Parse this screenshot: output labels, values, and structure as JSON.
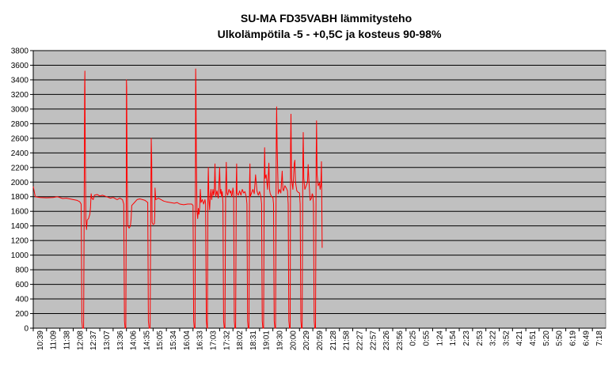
{
  "chart_data": {
    "type": "line",
    "title": "SU-MA FD35VABH lämmitysteho",
    "subtitle": "Ulkolämpötila  -5 - +0,5C ja kosteus 90-98%",
    "xlabel": "",
    "ylabel": "",
    "ylim": [
      0,
      3800
    ],
    "yticks": [
      0,
      200,
      400,
      600,
      800,
      1000,
      1200,
      1400,
      1600,
      1800,
      2000,
      2200,
      2400,
      2600,
      2800,
      3000,
      3200,
      3400,
      3600,
      3800
    ],
    "xticks": [
      "10:39",
      "11:09",
      "11:38",
      "12:08",
      "12:37",
      "13:07",
      "13:36",
      "14:06",
      "14:35",
      "15:05",
      "15:34",
      "16:04",
      "16:33",
      "17:03",
      "17:32",
      "18:02",
      "18:31",
      "19:01",
      "19:30",
      "20:00",
      "20:29",
      "20:59",
      "21:28",
      "21:58",
      "22:27",
      "22:57",
      "23:26",
      "23:56",
      "0:25",
      "0:55",
      "1:24",
      "1:54",
      "2:23",
      "2:53",
      "3:22",
      "3:52",
      "4:21",
      "4:51",
      "5:20",
      "5:50",
      "6:19",
      "6:49",
      "7:18"
    ],
    "grid": true,
    "plot_background": "#c0c0c0",
    "colors": {
      "line": "#ff0000",
      "grid": "#000000",
      "plot_bg": "#c0c0c0"
    },
    "series": [
      {
        "values": [
          [
            0,
            1940
          ],
          [
            0.15,
            1800
          ],
          [
            0.5,
            1790
          ],
          [
            1,
            1785
          ],
          [
            1.5,
            1790
          ],
          [
            1.8,
            1800
          ],
          [
            2.2,
            1775
          ],
          [
            2.5,
            1780
          ],
          [
            3,
            1760
          ],
          [
            3.3,
            1750
          ],
          [
            3.5,
            1730
          ],
          [
            3.6,
            1700
          ],
          [
            3.65,
            100
          ],
          [
            3.7,
            0
          ],
          [
            3.78,
            0
          ],
          [
            3.82,
            1380
          ],
          [
            3.86,
            3300
          ],
          [
            3.88,
            3520
          ],
          [
            3.9,
            2600
          ],
          [
            3.95,
            1500
          ],
          [
            4.0,
            1350
          ],
          [
            4.05,
            1480
          ],
          [
            4.15,
            1500
          ],
          [
            4.25,
            1560
          ],
          [
            4.3,
            1650
          ],
          [
            4.35,
            1840
          ],
          [
            4.4,
            1780
          ],
          [
            4.5,
            1760
          ],
          [
            4.6,
            1820
          ],
          [
            4.8,
            1830
          ],
          [
            5,
            1810
          ],
          [
            5.2,
            1820
          ],
          [
            5.5,
            1800
          ],
          [
            5.8,
            1780
          ],
          [
            6,
            1790
          ],
          [
            6.3,
            1760
          ],
          [
            6.5,
            1780
          ],
          [
            6.7,
            1760
          ],
          [
            6.8,
            1700
          ],
          [
            6.85,
            100
          ],
          [
            6.9,
            0
          ],
          [
            6.95,
            0
          ],
          [
            6.98,
            1500
          ],
          [
            7.0,
            3400
          ],
          [
            7.02,
            3300
          ],
          [
            7.05,
            2200
          ],
          [
            7.1,
            1400
          ],
          [
            7.2,
            1370
          ],
          [
            7.3,
            1400
          ],
          [
            7.35,
            1500
          ],
          [
            7.4,
            1680
          ],
          [
            7.6,
            1720
          ],
          [
            7.8,
            1760
          ],
          [
            8,
            1770
          ],
          [
            8.2,
            1760
          ],
          [
            8.4,
            1750
          ],
          [
            8.6,
            1720
          ],
          [
            8.65,
            100
          ],
          [
            8.7,
            0
          ],
          [
            8.78,
            0
          ],
          [
            8.82,
            1450
          ],
          [
            8.86,
            2600
          ],
          [
            8.9,
            2300
          ],
          [
            8.93,
            1450
          ],
          [
            9.0,
            1420
          ],
          [
            9.1,
            1430
          ],
          [
            9.13,
            1550
          ],
          [
            9.15,
            1920
          ],
          [
            9.2,
            1760
          ],
          [
            9.4,
            1780
          ],
          [
            9.6,
            1760
          ],
          [
            9.8,
            1740
          ],
          [
            10,
            1730
          ],
          [
            10.3,
            1720
          ],
          [
            10.6,
            1710
          ],
          [
            10.8,
            1720
          ],
          [
            11,
            1700
          ],
          [
            11.3,
            1690
          ],
          [
            11.6,
            1700
          ],
          [
            11.9,
            1700
          ],
          [
            12.0,
            1680
          ],
          [
            12.05,
            100
          ],
          [
            12.1,
            0
          ],
          [
            12.15,
            0
          ],
          [
            12.18,
            2000
          ],
          [
            12.2,
            3550
          ],
          [
            12.22,
            3300
          ],
          [
            12.25,
            2300
          ],
          [
            12.3,
            1600
          ],
          [
            12.35,
            1500
          ],
          [
            12.4,
            1640
          ],
          [
            12.45,
            1560
          ],
          [
            12.5,
            1650
          ],
          [
            12.55,
            1900
          ],
          [
            12.6,
            1720
          ],
          [
            12.7,
            1760
          ],
          [
            12.8,
            1700
          ],
          [
            12.9,
            1760
          ],
          [
            12.95,
            1700
          ],
          [
            13.0,
            100
          ],
          [
            13.05,
            0
          ],
          [
            13.08,
            0
          ],
          [
            13.12,
            1900
          ],
          [
            13.15,
            2200
          ],
          [
            13.2,
            1760
          ],
          [
            13.25,
            1620
          ],
          [
            13.3,
            1820
          ],
          [
            13.35,
            1900
          ],
          [
            13.4,
            1760
          ],
          [
            13.5,
            1900
          ],
          [
            13.55,
            1820
          ],
          [
            13.6,
            1880
          ],
          [
            13.65,
            2250
          ],
          [
            13.7,
            1800
          ],
          [
            13.8,
            1880
          ],
          [
            13.9,
            1780
          ],
          [
            14.0,
            2200
          ],
          [
            14.05,
            1840
          ],
          [
            14.1,
            1900
          ],
          [
            14.15,
            1800
          ],
          [
            14.2,
            1870
          ],
          [
            14.25,
            1700
          ],
          [
            14.3,
            100
          ],
          [
            14.35,
            0
          ],
          [
            14.4,
            0
          ],
          [
            14.45,
            1900
          ],
          [
            14.5,
            2270
          ],
          [
            14.55,
            1850
          ],
          [
            14.6,
            1820
          ],
          [
            14.7,
            1900
          ],
          [
            14.8,
            1850
          ],
          [
            14.85,
            1880
          ],
          [
            14.9,
            1800
          ],
          [
            14.95,
            1840
          ],
          [
            15.0,
            1920
          ],
          [
            15.05,
            1850
          ],
          [
            15.1,
            100
          ],
          [
            15.15,
            0
          ],
          [
            15.2,
            0
          ],
          [
            15.25,
            2000
          ],
          [
            15.28,
            2250
          ],
          [
            15.3,
            1850
          ],
          [
            15.4,
            1820
          ],
          [
            15.5,
            1880
          ],
          [
            15.6,
            1820
          ],
          [
            15.7,
            1900
          ],
          [
            15.8,
            1850
          ],
          [
            15.9,
            1870
          ],
          [
            16.0,
            1800
          ],
          [
            16.05,
            1700
          ],
          [
            16.1,
            100
          ],
          [
            16.15,
            0
          ],
          [
            16.2,
            0
          ],
          [
            16.25,
            2000
          ],
          [
            16.28,
            2250
          ],
          [
            16.3,
            1800
          ],
          [
            16.4,
            1850
          ],
          [
            16.5,
            1900
          ],
          [
            16.6,
            1840
          ],
          [
            16.7,
            2100
          ],
          [
            16.8,
            1880
          ],
          [
            16.9,
            1820
          ],
          [
            17.0,
            1870
          ],
          [
            17.1,
            1800
          ],
          [
            17.15,
            1700
          ],
          [
            17.2,
            100
          ],
          [
            17.25,
            0
          ],
          [
            17.3,
            0
          ],
          [
            17.35,
            2000
          ],
          [
            17.38,
            2470
          ],
          [
            17.42,
            2050
          ],
          [
            17.5,
            2100
          ],
          [
            17.6,
            1900
          ],
          [
            17.7,
            2260
          ],
          [
            17.75,
            1900
          ],
          [
            17.8,
            1840
          ],
          [
            17.9,
            1800
          ],
          [
            18.0,
            1790
          ],
          [
            18.05,
            1700
          ],
          [
            18.1,
            100
          ],
          [
            18.15,
            0
          ],
          [
            18.2,
            0
          ],
          [
            18.25,
            2500
          ],
          [
            18.28,
            3030
          ],
          [
            18.32,
            2500
          ],
          [
            18.4,
            1840
          ],
          [
            18.5,
            1900
          ],
          [
            18.6,
            1850
          ],
          [
            18.7,
            2150
          ],
          [
            18.75,
            1900
          ],
          [
            18.8,
            1880
          ],
          [
            18.9,
            1950
          ],
          [
            19.0,
            1920
          ],
          [
            19.1,
            1880
          ],
          [
            19.15,
            1700
          ],
          [
            19.2,
            100
          ],
          [
            19.25,
            0
          ],
          [
            19.3,
            0
          ],
          [
            19.33,
            2500
          ],
          [
            19.36,
            2930
          ],
          [
            19.4,
            2050
          ],
          [
            19.5,
            1900
          ],
          [
            19.6,
            2250
          ],
          [
            19.65,
            2300
          ],
          [
            19.7,
            2000
          ],
          [
            19.8,
            1880
          ],
          [
            19.9,
            1860
          ],
          [
            20.0,
            1850
          ],
          [
            20.05,
            1700
          ],
          [
            20.1,
            100
          ],
          [
            20.15,
            0
          ],
          [
            20.2,
            0
          ],
          [
            20.25,
            2300
          ],
          [
            20.28,
            2680
          ],
          [
            20.32,
            2050
          ],
          [
            20.4,
            1900
          ],
          [
            20.5,
            1950
          ],
          [
            20.6,
            2000
          ],
          [
            20.65,
            2240
          ],
          [
            20.7,
            2050
          ],
          [
            20.8,
            1750
          ],
          [
            20.9,
            1780
          ],
          [
            20.95,
            1840
          ],
          [
            21.0,
            1820
          ],
          [
            21.05,
            1700
          ],
          [
            21.1,
            100
          ],
          [
            21.15,
            0
          ],
          [
            21.2,
            0
          ],
          [
            21.25,
            2300
          ],
          [
            21.28,
            2840
          ],
          [
            21.32,
            2100
          ],
          [
            21.4,
            1950
          ],
          [
            21.5,
            1990
          ],
          [
            21.55,
            1900
          ],
          [
            21.6,
            1950
          ],
          [
            21.65,
            2280
          ],
          [
            21.7,
            1100
          ]
        ]
      }
    ]
  }
}
